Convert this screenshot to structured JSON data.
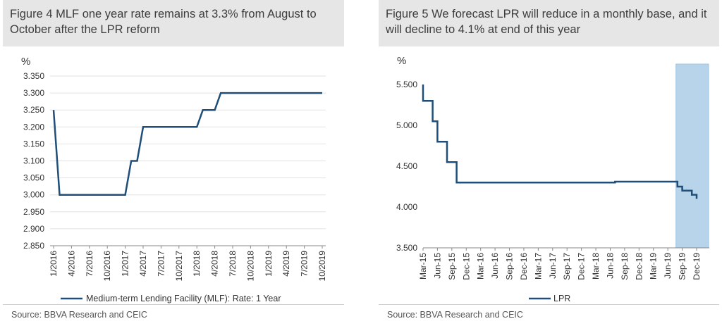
{
  "figures": [
    {
      "title": "Figure 4 MLF one year rate remains at 3.3% from August to October after the LPR reform",
      "source": "Source: BBVA Research and CEIC"
    },
    {
      "title": "Figure 5 We forecast LPR will reduce in a monthly base, and it will decline to 4.1% at end of this year",
      "source": "Source: BBVA Research and CEIC"
    }
  ],
  "chart_data": [
    {
      "type": "line",
      "ylabel": "%",
      "ylim": [
        2.85,
        3.35
      ],
      "yticks": [
        "2.850",
        "2.900",
        "2.950",
        "3.000",
        "3.050",
        "3.100",
        "3.150",
        "3.200",
        "3.250",
        "3.300",
        "3.350"
      ],
      "xticks": [
        "1/2016",
        "4/2016",
        "7/2016",
        "10/2016",
        "1/2017",
        "4/2017",
        "7/2017",
        "10/2017",
        "1/2018",
        "4/2018",
        "7/2018",
        "10/2018",
        "1/2019",
        "4/2019",
        "7/2019",
        "10/2019"
      ],
      "grid": true,
      "legend_position": "bottom",
      "color": "#1f4e79",
      "series": [
        {
          "name": "Medium-term Lending Facility (MLF): Rate: 1 Year",
          "x": [
            0,
            1,
            12,
            13,
            14,
            15,
            24,
            25,
            27,
            28,
            45
          ],
          "values": [
            3.25,
            3.0,
            3.0,
            3.1,
            3.1,
            3.2,
            3.2,
            3.25,
            3.25,
            3.3,
            3.3
          ]
        }
      ]
    },
    {
      "type": "line",
      "ylabel": "%",
      "ylim": [
        3.5,
        5.5
      ],
      "yticks": [
        "3.500",
        "4.000",
        "4.500",
        "5.000",
        "5.500"
      ],
      "xticks": [
        "Mar-15",
        "Jun-15",
        "Sep-15",
        "Dec-15",
        "Mar-16",
        "Jun-16",
        "Sep-16",
        "Dec-16",
        "Mar-17",
        "Jun-17",
        "Sep-17",
        "Dec-17",
        "Mar-18",
        "Jun-18",
        "Sep-18",
        "Dec-18",
        "Mar-19",
        "Jun-19",
        "Sep-19",
        "Dec-19"
      ],
      "grid": false,
      "legend_position": "bottom",
      "color": "#1f4e79",
      "shaded_region": {
        "from": "Aug-19",
        "to": "Jan-20",
        "color": "#b8d4ea"
      },
      "series": [
        {
          "name": "LPR",
          "x": [
            "Mar-15",
            "Mar-15",
            "May-15",
            "May-15",
            "Jun-15",
            "Jun-15",
            "Aug-15",
            "Aug-15",
            "Oct-15",
            "Oct-15",
            "Jul-18",
            "Jul-18",
            "Aug-19",
            "Aug-19",
            "Sep-19",
            "Sep-19",
            "Oct-19",
            "Oct-19",
            "Nov-19",
            "Nov-19",
            "Dec-19",
            "Dec-19"
          ],
          "values": [
            5.5,
            5.3,
            5.3,
            5.05,
            5.05,
            4.8,
            4.8,
            4.55,
            4.55,
            4.3,
            4.3,
            4.31,
            4.31,
            4.25,
            4.25,
            4.2,
            4.2,
            4.2,
            4.2,
            4.15,
            4.15,
            4.1
          ]
        }
      ]
    }
  ]
}
